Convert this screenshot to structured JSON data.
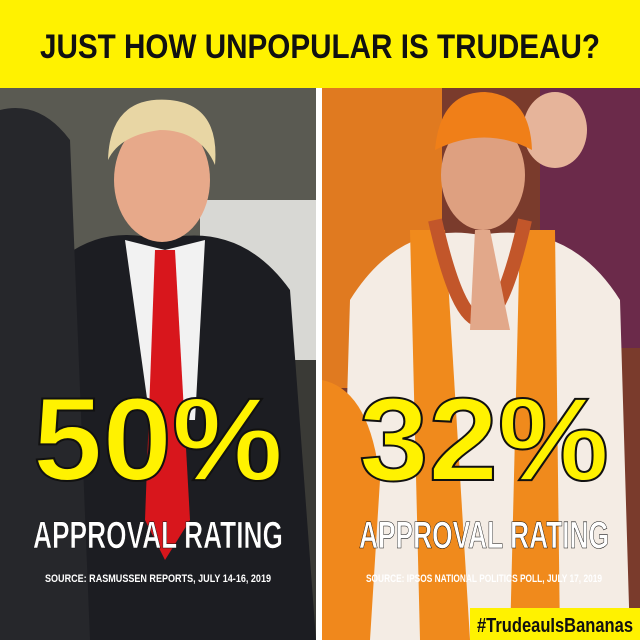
{
  "header": {
    "title": "JUST HOW UNPOPULAR IS TRUDEAU?"
  },
  "panels": [
    {
      "figure": "50%",
      "caption": "APPROVAL RATING",
      "source": "SOURCE: RASMUSSEN REPORTS, JULY 14-16, 2019"
    },
    {
      "figure": "32%",
      "caption": "APPROVAL RATING",
      "source": "SOURCE: IPSOS NATIONAL POLITICS POLL, JULY 17, 2019"
    }
  ],
  "hashtag": "#TrudeauIsBananas"
}
